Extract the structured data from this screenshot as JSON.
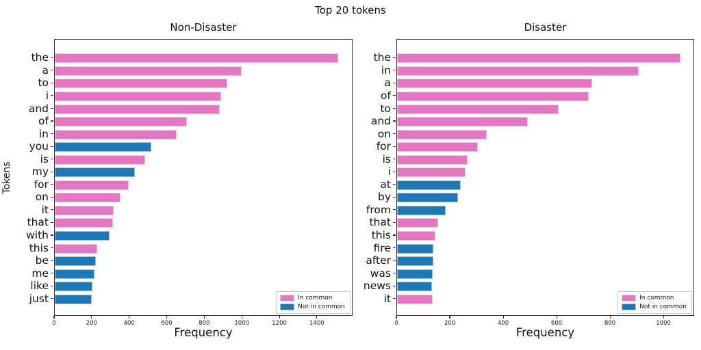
{
  "figure": {
    "title": "Top 20 tokens"
  },
  "colors": {
    "in_common": "#e377c2",
    "not_in_common": "#1f77b4",
    "spine": "#333333"
  },
  "legend": {
    "in_common_label": "In common",
    "not_in_common_label": "Not in common"
  },
  "chart_data": [
    {
      "type": "bar",
      "orientation": "horizontal",
      "title": "Non-Disaster",
      "xlabel": "Frequency",
      "ylabel": "Tokens",
      "xlim": [
        0,
        1590
      ],
      "xticks": [
        0,
        200,
        400,
        600,
        800,
        1000,
        1200,
        1400
      ],
      "grid": false,
      "legend_position": "lower right",
      "bars": [
        {
          "token": "the",
          "value": 1510,
          "group": "in_common"
        },
        {
          "token": "a",
          "value": 995,
          "group": "in_common"
        },
        {
          "token": "to",
          "value": 920,
          "group": "in_common"
        },
        {
          "token": "i",
          "value": 885,
          "group": "in_common"
        },
        {
          "token": "and",
          "value": 880,
          "group": "in_common"
        },
        {
          "token": "of",
          "value": 705,
          "group": "in_common"
        },
        {
          "token": "in",
          "value": 650,
          "group": "in_common"
        },
        {
          "token": "you",
          "value": 515,
          "group": "not_in_common"
        },
        {
          "token": "is",
          "value": 480,
          "group": "in_common"
        },
        {
          "token": "my",
          "value": 425,
          "group": "not_in_common"
        },
        {
          "token": "for",
          "value": 395,
          "group": "in_common"
        },
        {
          "token": "on",
          "value": 350,
          "group": "in_common"
        },
        {
          "token": "it",
          "value": 315,
          "group": "in_common"
        },
        {
          "token": "that",
          "value": 310,
          "group": "in_common"
        },
        {
          "token": "with",
          "value": 290,
          "group": "not_in_common"
        },
        {
          "token": "this",
          "value": 225,
          "group": "in_common"
        },
        {
          "token": "be",
          "value": 220,
          "group": "not_in_common"
        },
        {
          "token": "me",
          "value": 210,
          "group": "not_in_common"
        },
        {
          "token": "like",
          "value": 200,
          "group": "not_in_common"
        },
        {
          "token": "just",
          "value": 195,
          "group": "not_in_common"
        }
      ]
    },
    {
      "type": "bar",
      "orientation": "horizontal",
      "title": "Disaster",
      "xlabel": "Frequency",
      "ylabel": "",
      "xlim": [
        0,
        1115
      ],
      "xticks": [
        0,
        200,
        400,
        600,
        800,
        1000
      ],
      "grid": false,
      "legend_position": "lower right",
      "bars": [
        {
          "token": "the",
          "value": 1060,
          "group": "in_common"
        },
        {
          "token": "in",
          "value": 905,
          "group": "in_common"
        },
        {
          "token": "a",
          "value": 730,
          "group": "in_common"
        },
        {
          "token": "of",
          "value": 718,
          "group": "in_common"
        },
        {
          "token": "to",
          "value": 605,
          "group": "in_common"
        },
        {
          "token": "and",
          "value": 490,
          "group": "in_common"
        },
        {
          "token": "on",
          "value": 335,
          "group": "in_common"
        },
        {
          "token": "for",
          "value": 303,
          "group": "in_common"
        },
        {
          "token": "is",
          "value": 264,
          "group": "in_common"
        },
        {
          "token": "i",
          "value": 256,
          "group": "in_common"
        },
        {
          "token": "at",
          "value": 238,
          "group": "not_in_common"
        },
        {
          "token": "by",
          "value": 228,
          "group": "not_in_common"
        },
        {
          "token": "from",
          "value": 182,
          "group": "not_in_common"
        },
        {
          "token": "that",
          "value": 153,
          "group": "in_common"
        },
        {
          "token": "this",
          "value": 143,
          "group": "in_common"
        },
        {
          "token": "fire",
          "value": 137,
          "group": "not_in_common"
        },
        {
          "token": "after",
          "value": 135,
          "group": "not_in_common"
        },
        {
          "token": "was",
          "value": 132,
          "group": "not_in_common"
        },
        {
          "token": "news",
          "value": 130,
          "group": "not_in_common"
        },
        {
          "token": "it",
          "value": 132,
          "group": "in_common"
        }
      ]
    }
  ]
}
